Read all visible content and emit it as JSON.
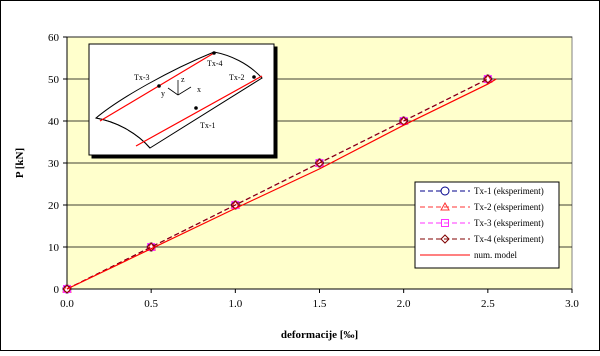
{
  "chart_data": {
    "type": "line",
    "xlabel": "deformacije [‰]",
    "ylabel": "P [kN]",
    "xlim": [
      0,
      3.0
    ],
    "ylim": [
      0,
      60
    ],
    "x_ticks": [
      "0.0",
      "0.5",
      "1.0",
      "1.5",
      "2.0",
      "2.5",
      "3.0"
    ],
    "y_ticks": [
      "0",
      "10",
      "20",
      "30",
      "40",
      "50",
      "60"
    ],
    "grid": "horizontal",
    "legend_position": "bottom-right",
    "background_color": "#ffffcc",
    "series": [
      {
        "name": "Tx-1 (eksperiment)",
        "color": "#00008b",
        "marker": "circle",
        "style": "dashed",
        "x": [
          0.0,
          0.5,
          1.0,
          1.5,
          2.0,
          2.5
        ],
        "y": [
          0,
          10,
          20,
          30,
          40,
          50
        ]
      },
      {
        "name": "Tx-2 (eksperiment)",
        "color": "#ff3333",
        "marker": "triangle",
        "style": "dashed",
        "x": [
          0.0,
          0.5,
          1.0,
          1.5,
          2.0,
          2.5
        ],
        "y": [
          0,
          10,
          20,
          30,
          40,
          50
        ]
      },
      {
        "name": "Tx-3 (eksperiment)",
        "color": "#ff33ff",
        "marker": "square",
        "style": "dashed",
        "x": [
          0.0,
          0.5,
          1.0,
          1.5,
          2.0,
          2.5
        ],
        "y": [
          0,
          10,
          20,
          30,
          40,
          50
        ]
      },
      {
        "name": "Tx-4 (eksperiment)",
        "color": "#800000",
        "marker": "diamond",
        "style": "dashed",
        "x": [
          0.0,
          0.5,
          1.0,
          1.5,
          2.0,
          2.5
        ],
        "y": [
          0,
          10,
          20,
          30,
          40,
          50
        ]
      },
      {
        "name": "num. model",
        "color": "#ff0000",
        "marker": "none",
        "style": "solid",
        "x": [
          0.0,
          0.5,
          1.0,
          1.5,
          2.0,
          2.5,
          2.55
        ],
        "y": [
          0,
          9.6,
          19.2,
          28.6,
          39.0,
          48.8,
          50
        ]
      }
    ],
    "inset": {
      "labels": [
        "Tx-1",
        "Tx-2",
        "Tx-3",
        "Tx-4",
        "x",
        "y",
        "z"
      ]
    }
  }
}
